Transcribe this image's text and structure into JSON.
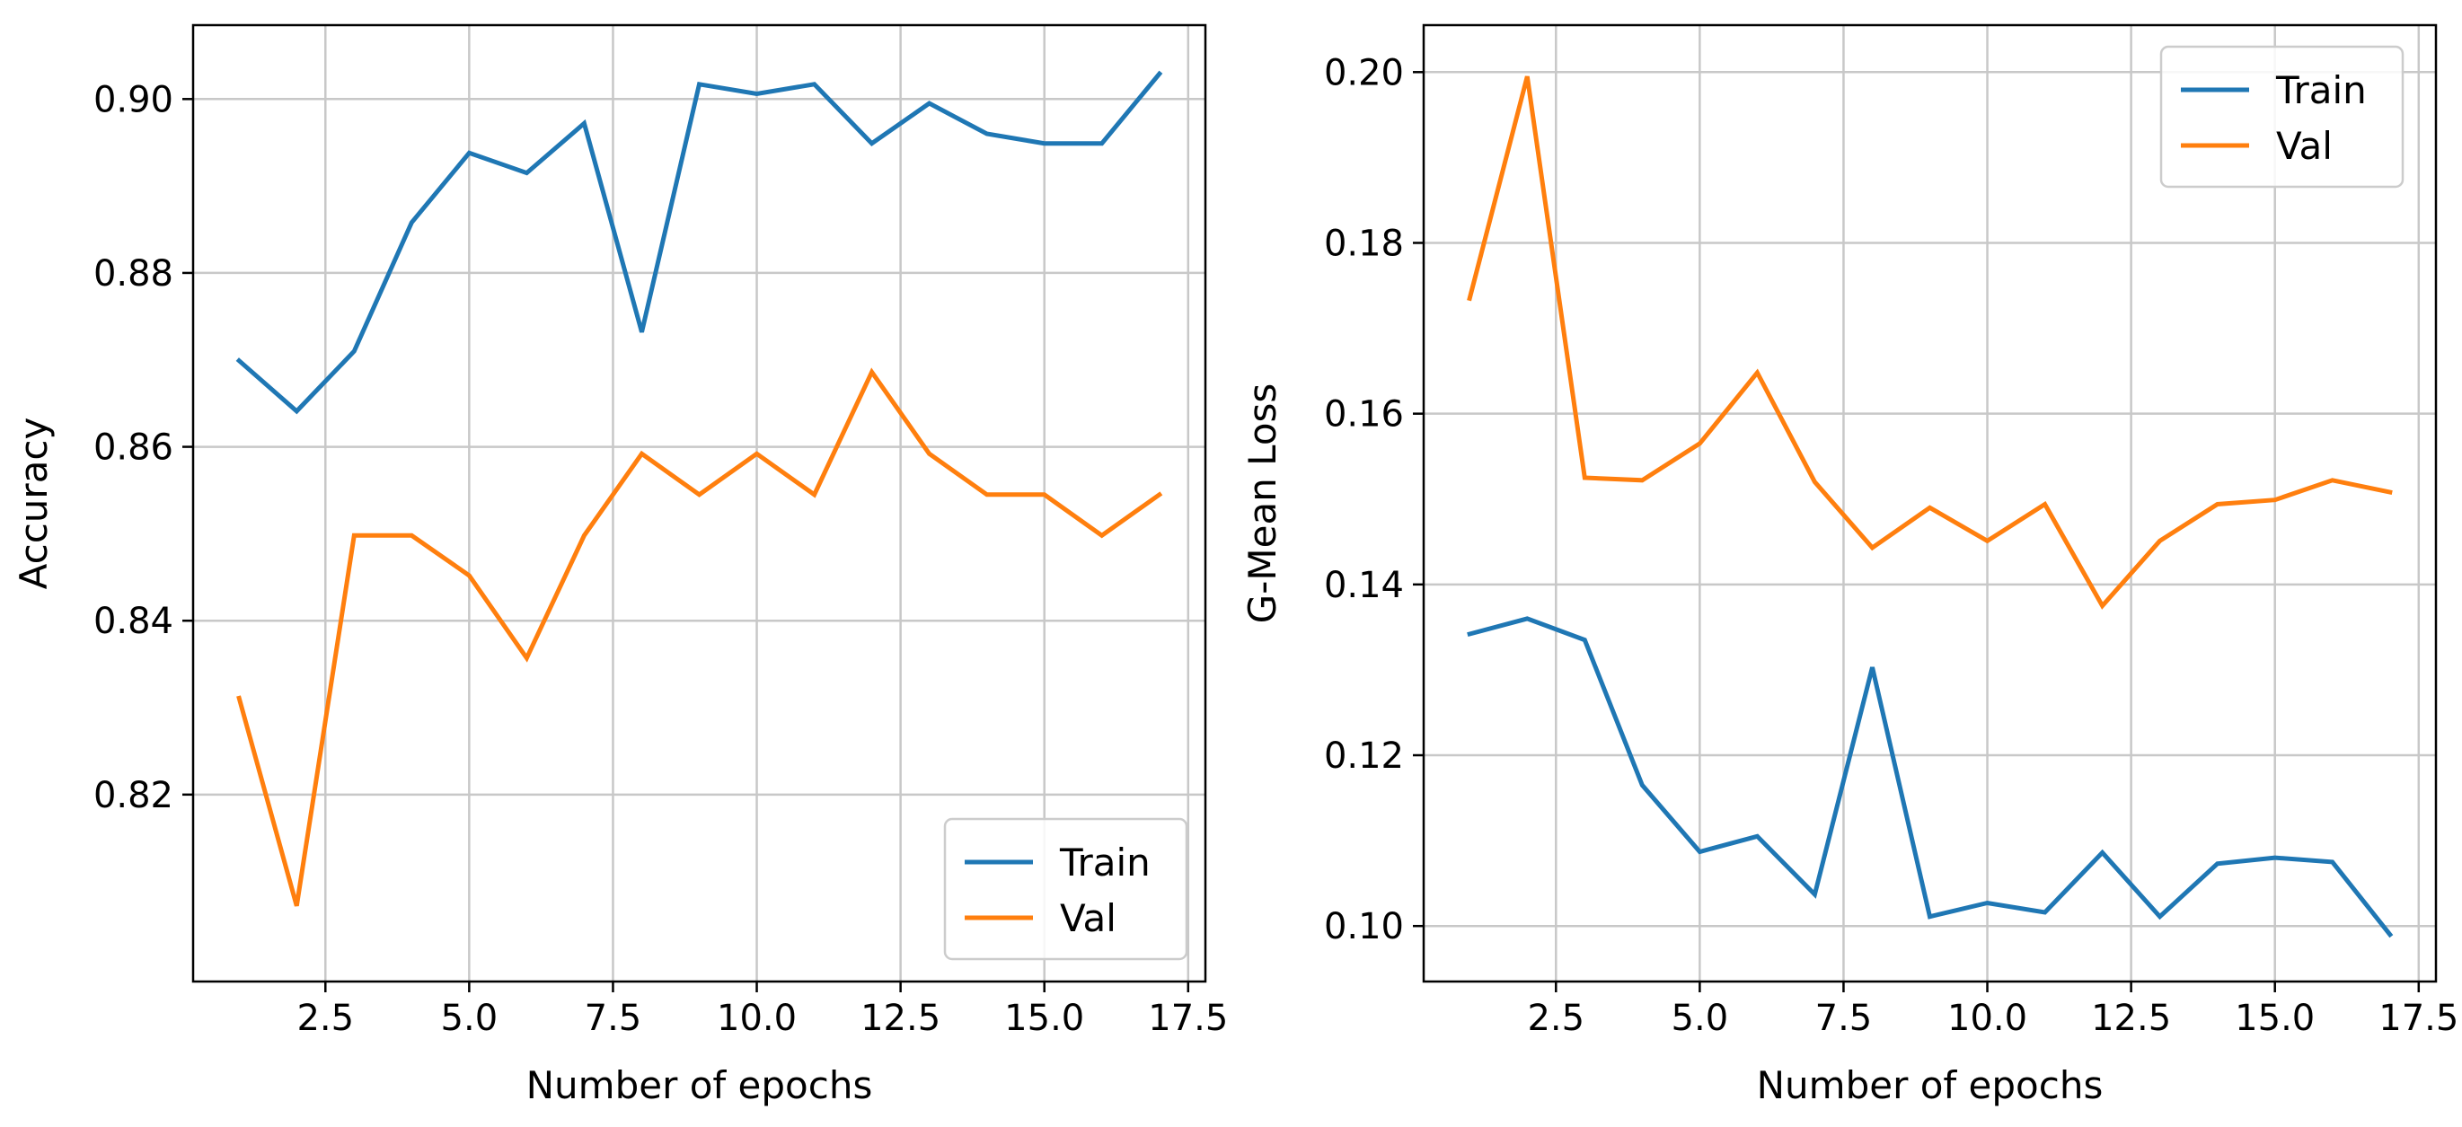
{
  "colors": {
    "train": "#1f77b4",
    "val": "#ff7f0e",
    "grid": "#c8c8c8"
  },
  "chart_data": [
    {
      "type": "line",
      "xlabel": "Number of epochs",
      "ylabel": "Accuracy",
      "xlim": [
        0.2,
        17.8
      ],
      "ylim": [
        0.7985,
        0.9085
      ],
      "xticks": [
        2.5,
        5.0,
        7.5,
        10.0,
        12.5,
        15.0,
        17.5
      ],
      "xtick_labels": [
        "2.5",
        "5.0",
        "7.5",
        "10.0",
        "12.5",
        "15.0",
        "17.5"
      ],
      "yticks": [
        0.82,
        0.84,
        0.86,
        0.88,
        0.9
      ],
      "ytick_labels": [
        "0.82",
        "0.84",
        "0.86",
        "0.88",
        "0.90"
      ],
      "grid": true,
      "legend_position": "lower-right",
      "x": [
        1,
        2,
        3,
        4,
        5,
        6,
        7,
        8,
        9,
        10,
        11,
        12,
        13,
        14,
        15,
        16,
        17
      ],
      "series": [
        {
          "name": "Train",
          "color": "#1f77b4",
          "values": [
            0.8699,
            0.8641,
            0.871,
            0.8858,
            0.8938,
            0.8915,
            0.8972,
            0.8732,
            0.9017,
            0.9006,
            0.9017,
            0.8949,
            0.8995,
            0.896,
            0.8949,
            0.8949,
            0.9029
          ]
        },
        {
          "name": "Val",
          "color": "#ff7f0e",
          "values": [
            0.8311,
            0.8072,
            0.8498,
            0.8498,
            0.8452,
            0.8357,
            0.8498,
            0.8592,
            0.8545,
            0.8592,
            0.8545,
            0.8686,
            0.8592,
            0.8545,
            0.8545,
            0.8498,
            0.8545
          ]
        }
      ]
    },
    {
      "type": "line",
      "xlabel": "Number of epochs",
      "ylabel": "G-Mean Loss",
      "xlim": [
        0.2,
        17.8
      ],
      "ylim": [
        0.0935,
        0.2055
      ],
      "xticks": [
        2.5,
        5.0,
        7.5,
        10.0,
        12.5,
        15.0,
        17.5
      ],
      "xtick_labels": [
        "2.5",
        "5.0",
        "7.5",
        "10.0",
        "12.5",
        "15.0",
        "17.5"
      ],
      "yticks": [
        0.1,
        0.12,
        0.14,
        0.16,
        0.18,
        0.2
      ],
      "ytick_labels": [
        "0.10",
        "0.12",
        "0.14",
        "0.16",
        "0.18",
        "0.20"
      ],
      "grid": true,
      "legend_position": "upper-right",
      "x": [
        1,
        2,
        3,
        4,
        5,
        6,
        7,
        8,
        9,
        10,
        11,
        12,
        13,
        14,
        15,
        16,
        17
      ],
      "series": [
        {
          "name": "Train",
          "color": "#1f77b4",
          "values": [
            0.1342,
            0.136,
            0.1335,
            0.1165,
            0.1087,
            0.1105,
            0.1037,
            0.1303,
            0.1011,
            0.1027,
            0.1016,
            0.1086,
            0.1011,
            0.1073,
            0.108,
            0.1075,
            0.099
          ]
        },
        {
          "name": "Val",
          "color": "#ff7f0e",
          "values": [
            0.1735,
            0.1995,
            0.1525,
            0.1522,
            0.1565,
            0.1648,
            0.152,
            0.1443,
            0.149,
            0.1451,
            0.1494,
            0.1375,
            0.1451,
            0.1494,
            0.1499,
            0.1522,
            0.1508
          ]
        }
      ]
    }
  ]
}
